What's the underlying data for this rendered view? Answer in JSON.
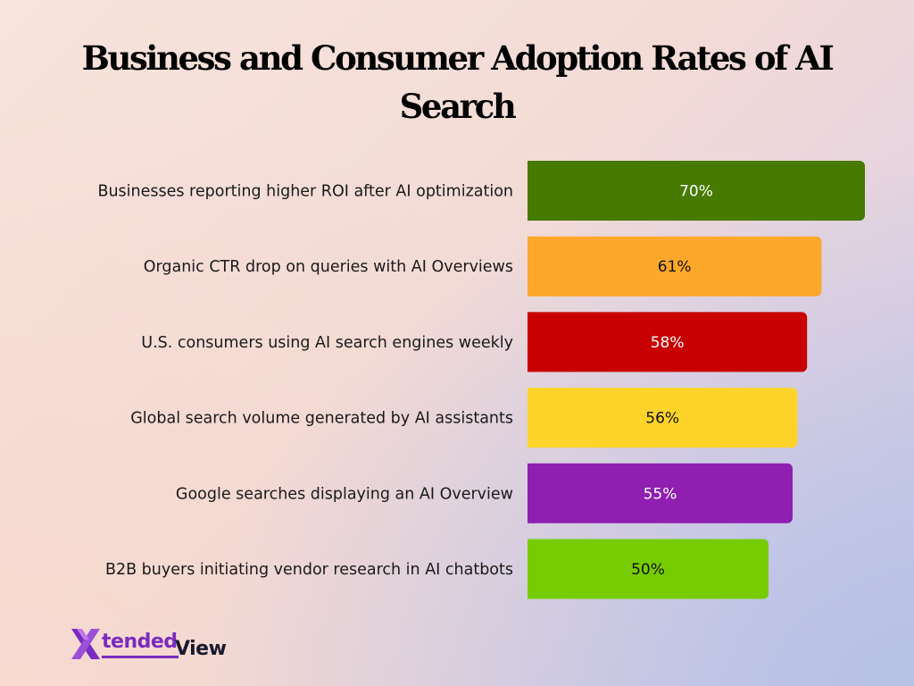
{
  "chart_data": {
    "type": "bar",
    "orientation": "horizontal",
    "title": "Business and Consumer Adoption Rates of AI Search",
    "title_lines": [
      "Business and Consumer Adoption Rates of AI",
      "Search"
    ],
    "categories": [
      "Businesses reporting higher ROI after AI optimization",
      "Organic CTR drop on queries with AI Overviews",
      "U.S. consumers using AI search engines weekly",
      "Global search volume generated by AI assistants",
      "Google searches displaying an AI Overview",
      "B2B buyers initiating vendor research in AI chatbots"
    ],
    "values": [
      70,
      61,
      58,
      56,
      55,
      50
    ],
    "value_labels": [
      "70%",
      "61%",
      "58%",
      "56%",
      "55%",
      "50%"
    ],
    "bar_colors": [
      "#467a00",
      "#fca82a",
      "#c90000",
      "#fed42a",
      "#8e1fb0",
      "#76cc00"
    ],
    "label_colors": [
      "#ffffff",
      "#111111",
      "#ffffff",
      "#111111",
      "#ffffff",
      "#111111"
    ],
    "xlim": [
      0,
      70
    ],
    "xlabel": "",
    "ylabel": "",
    "grid": false,
    "legend": "none"
  },
  "logo": {
    "mark": "X",
    "text_1": "tended",
    "text_2": "View",
    "colors": {
      "primary": "#7b2bbf",
      "dark": "#1a1a2e"
    }
  }
}
